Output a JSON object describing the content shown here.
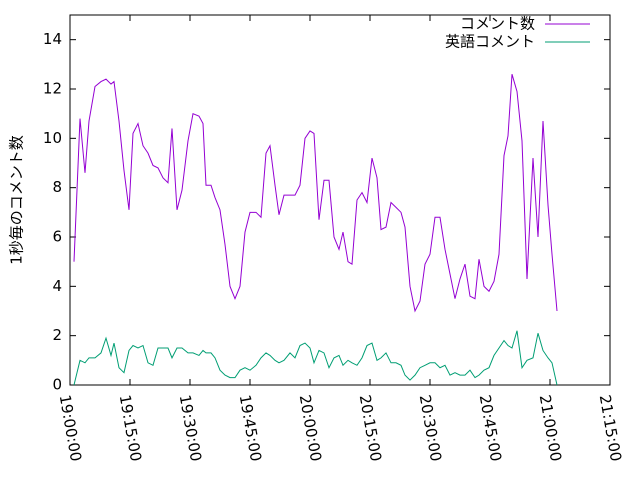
{
  "chart_data": {
    "type": "line",
    "y_label": "1秒毎のコメント数",
    "x": [
      "19:01:00",
      "19:02:30",
      "19:03:45",
      "19:04:45",
      "19:06:15",
      "19:07:45",
      "19:09:00",
      "19:10:15",
      "19:11:00",
      "19:12:15",
      "19:13:30",
      "19:14:45",
      "19:15:45",
      "19:17:00",
      "19:18:15",
      "19:19:30",
      "19:20:45",
      "19:22:00",
      "19:23:15",
      "19:24:30",
      "19:25:30",
      "19:26:45",
      "19:28:00",
      "19:29:30",
      "19:30:45",
      "19:32:15",
      "19:33:15",
      "19:34:00",
      "19:35:15",
      "19:36:15",
      "19:37:30",
      "19:38:45",
      "19:40:00",
      "19:41:15",
      "19:42:30",
      "19:43:45",
      "19:45:00",
      "19:46:30",
      "19:47:45",
      "19:49:00",
      "19:50:00",
      "19:51:15",
      "19:52:15",
      "19:53:30",
      "19:55:00",
      "19:56:15",
      "19:57:30",
      "19:58:45",
      "20:00:00",
      "20:01:00",
      "20:02:15",
      "20:03:30",
      "20:04:45",
      "20:06:00",
      "20:07:15",
      "20:08:15",
      "20:09:30",
      "20:10:30",
      "20:11:45",
      "20:13:00",
      "20:14:15",
      "20:15:30",
      "20:16:45",
      "20:17:45",
      "20:19:00",
      "20:20:15",
      "20:21:30",
      "20:22:45",
      "20:23:45",
      "20:25:00",
      "20:26:15",
      "20:27:30",
      "20:28:45",
      "20:30:00",
      "20:31:15",
      "20:32:30",
      "20:33:45",
      "20:35:00",
      "20:36:15",
      "20:37:30",
      "20:38:45",
      "20:40:00",
      "20:41:15",
      "20:42:15",
      "20:43:30",
      "20:44:45",
      "20:46:00",
      "20:47:15",
      "20:48:30",
      "20:49:30",
      "20:50:30",
      "20:51:45",
      "20:53:00",
      "20:54:15",
      "20:55:45",
      "20:57:00",
      "20:58:15",
      "20:59:30",
      "21:00:30",
      "21:01:45"
    ],
    "series": [
      {
        "name": "コメント数",
        "color": "#9400d3",
        "values": [
          5.0,
          10.8,
          8.6,
          10.7,
          12.1,
          12.3,
          12.4,
          12.2,
          12.3,
          10.7,
          8.7,
          7.1,
          10.2,
          10.6,
          9.7,
          9.4,
          8.9,
          8.8,
          8.4,
          8.2,
          10.4,
          7.1,
          7.9,
          9.9,
          11.0,
          10.9,
          10.6,
          8.1,
          8.1,
          7.6,
          7.1,
          5.7,
          4.0,
          3.5,
          4.0,
          6.2,
          7.0,
          7.0,
          6.8,
          9.4,
          9.7,
          8.1,
          6.9,
          7.7,
          7.7,
          7.7,
          8.1,
          10.0,
          10.3,
          10.2,
          6.7,
          8.3,
          8.3,
          6.0,
          5.5,
          6.2,
          5.0,
          4.9,
          7.5,
          7.8,
          7.4,
          9.2,
          8.4,
          6.3,
          6.4,
          7.4,
          7.2,
          7.0,
          6.4,
          4.0,
          3.0,
          3.4,
          4.9,
          5.3,
          6.8,
          6.8,
          5.5,
          4.5,
          3.5,
          4.3,
          4.9,
          3.6,
          3.5,
          5.1,
          4.0,
          3.8,
          4.2,
          5.3,
          9.3,
          10.1,
          12.6,
          11.9,
          9.9,
          4.3,
          9.2,
          6.0,
          10.7,
          7.3,
          5.3,
          3.0
        ]
      },
      {
        "name": "英語コメント",
        "color": "#009e73",
        "values": [
          0.0,
          1.0,
          0.9,
          1.1,
          1.1,
          1.3,
          1.9,
          1.2,
          1.7,
          0.7,
          0.5,
          1.4,
          1.6,
          1.5,
          1.6,
          0.9,
          0.8,
          1.5,
          1.5,
          1.5,
          1.1,
          1.5,
          1.5,
          1.3,
          1.3,
          1.2,
          1.4,
          1.3,
          1.3,
          1.1,
          0.6,
          0.4,
          0.3,
          0.3,
          0.6,
          0.7,
          0.6,
          0.8,
          1.1,
          1.3,
          1.2,
          1.0,
          0.9,
          1.0,
          1.3,
          1.1,
          1.6,
          1.7,
          1.5,
          0.9,
          1.4,
          1.3,
          0.7,
          1.1,
          1.2,
          0.8,
          1.0,
          0.9,
          0.8,
          1.1,
          1.6,
          1.7,
          1.0,
          1.1,
          1.3,
          0.9,
          0.9,
          0.8,
          0.4,
          0.2,
          0.4,
          0.7,
          0.8,
          0.9,
          0.9,
          0.7,
          0.8,
          0.4,
          0.5,
          0.4,
          0.4,
          0.6,
          0.3,
          0.4,
          0.6,
          0.7,
          1.2,
          1.5,
          1.8,
          1.6,
          1.5,
          2.2,
          0.7,
          1.0,
          1.1,
          2.1,
          1.4,
          1.1,
          0.9,
          0.0
        ]
      }
    ],
    "xlim": [
      "19:00:00",
      "21:15:00"
    ],
    "xticks": [
      "19:00:00",
      "19:15:00",
      "19:30:00",
      "19:45:00",
      "20:00:00",
      "20:15:00",
      "20:30:00",
      "20:45:00",
      "21:00:00",
      "21:15:00"
    ],
    "ylim": [
      0,
      15
    ],
    "yticks": [
      0,
      2,
      4,
      6,
      8,
      10,
      12,
      14
    ],
    "legend": "top-right",
    "grid": false
  }
}
